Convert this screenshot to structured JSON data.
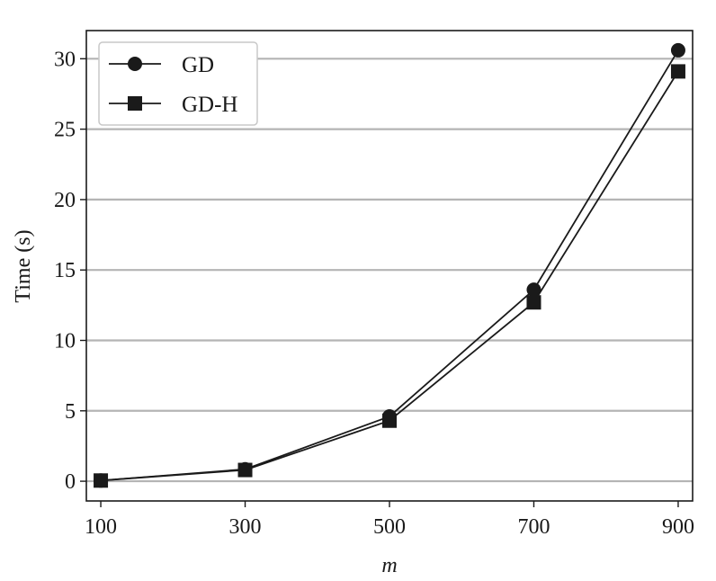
{
  "chart_data": {
    "type": "line",
    "xlabel": "m",
    "ylabel": "Time (s)",
    "x": [
      100,
      300,
      500,
      700,
      900
    ],
    "x_ticks": [
      "100",
      "300",
      "500",
      "700",
      "900"
    ],
    "y_ticks": [
      "0",
      "5",
      "10",
      "15",
      "20",
      "25",
      "30"
    ],
    "xlim": [
      80,
      920
    ],
    "ylim": [
      -1.4,
      32.0
    ],
    "grid": "horizontal",
    "legend_position": "top-left",
    "series": [
      {
        "name": "GD",
        "marker": "circle",
        "color": "#1a1a1a",
        "values": [
          0.05,
          0.85,
          4.6,
          13.6,
          30.6
        ]
      },
      {
        "name": "GD-H",
        "marker": "square",
        "color": "#1a1a1a",
        "values": [
          0.05,
          0.8,
          4.3,
          12.7,
          29.1
        ]
      }
    ]
  }
}
